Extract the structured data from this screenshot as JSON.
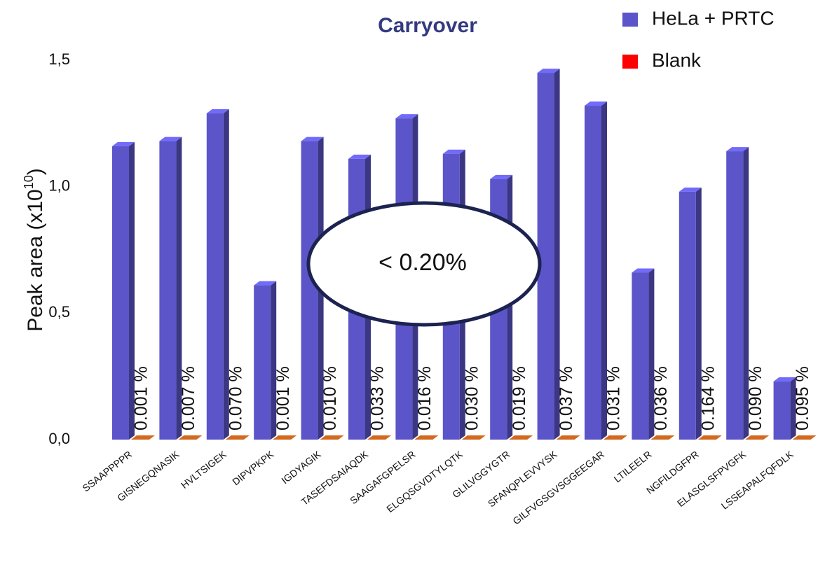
{
  "chart_data": {
    "type": "bar3d",
    "title": "Carryover",
    "ylabel": "Peak area (x10",
    "ylabel_exponent": "10",
    "ylabel_end": ")",
    "categories": [
      "SSAAPPPPR",
      "GISNEGQNASIK",
      "HVLTSIGEK",
      "DIPVPKPK",
      "IGDYAGIK",
      "TASEFDSAIAQDK",
      "SAAGAFGPELSR",
      "ELGQSGVDTYLQTK",
      "GLILVGGYGTR",
      "SFANQPLEVVYSK",
      "GILFVGSGVSGGEEGAR",
      "LTILEELR",
      "NGFILDGFPR",
      "ELASGLSFPVGFK",
      "LSSEAPALFQFDLK"
    ],
    "series": [
      {
        "name": "HeLa + PRTC",
        "color": "#5b55c9",
        "values": [
          1.16,
          1.18,
          1.29,
          0.61,
          1.18,
          1.11,
          1.27,
          1.13,
          1.03,
          1.45,
          1.32,
          0.66,
          0.98,
          1.14,
          0.23
        ]
      },
      {
        "name": "Blank",
        "color": "#ff0000",
        "bar_color": "#d2691e",
        "values": [
          0,
          0,
          0,
          0,
          0,
          0,
          0,
          0,
          0,
          0,
          0,
          0,
          0,
          0,
          0
        ]
      }
    ],
    "carryover_labels": [
      "0.001 %",
      "0.007 %",
      "0.070 %",
      "0.001 %",
      "0.010 %",
      "0.033 %",
      "0.016 %",
      "0.030 %",
      "0.019 %",
      "0.037 %",
      "0.031 %",
      "0.036 %",
      "0.164 %",
      "0.090 %",
      "0.095 %"
    ],
    "callout": "< 0.20%",
    "ylim": [
      0,
      1.5
    ],
    "yticks": [
      {
        "value": 0,
        "label": "0,0"
      },
      {
        "value": 0.5,
        "label": "0,5"
      },
      {
        "value": 1,
        "label": "1,0"
      },
      {
        "value": 1.5,
        "label": "1,5"
      }
    ],
    "legend": "top-right"
  }
}
